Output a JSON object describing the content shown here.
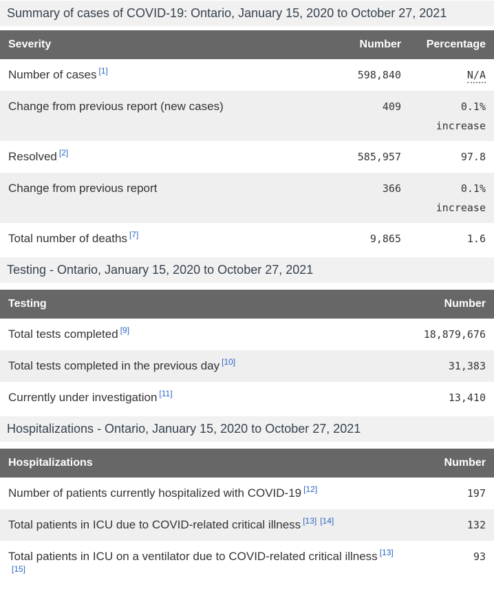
{
  "palette": {
    "table_header_bg": "#676767",
    "table_header_text": "#ffffff",
    "section_heading_bg": "#f1f1f1",
    "row_alt_bg": "#efefef",
    "body_text": "#333333",
    "footnote_link_blue": "#2966c2"
  },
  "headings": {
    "summary": "Summary of cases of COVID-19: Ontario, January 15, 2020 to October 27, 2021",
    "testing": "Testing - Ontario, January 15, 2020 to October 27, 2021",
    "hospitalizations": "Hospitalizations - Ontario, January 15, 2020 to October 27, 2021"
  },
  "summary_table": {
    "columns": [
      "Severity",
      "Number",
      "Percentage"
    ],
    "rows": [
      {
        "label": "Number of cases",
        "footnotes": [
          "[1]"
        ],
        "number": "598,840",
        "percentage": "N/A",
        "qualifier": ""
      },
      {
        "label": "Change from previous report (new cases)",
        "footnotes": [],
        "number": "409",
        "percentage": "0.1%",
        "qualifier": "increase"
      },
      {
        "label": "Resolved",
        "footnotes": [
          "[2]"
        ],
        "number": "585,957",
        "percentage": "97.8",
        "qualifier": ""
      },
      {
        "label": "Change from previous report",
        "footnotes": [],
        "number": "366",
        "percentage": "0.1%",
        "qualifier": "increase"
      },
      {
        "label": "Total number of deaths",
        "footnotes": [
          "[7]"
        ],
        "number": "9,865",
        "percentage": "1.6",
        "qualifier": ""
      }
    ]
  },
  "testing_table": {
    "columns": [
      "Testing",
      "Number"
    ],
    "rows": [
      {
        "label": "Total tests completed",
        "footnotes": [
          "[9]"
        ],
        "number": "18,879,676"
      },
      {
        "label": "Total tests completed in the previous day",
        "footnotes": [
          "[10]"
        ],
        "number": "31,383"
      },
      {
        "label": "Currently under investigation",
        "footnotes": [
          "[11]"
        ],
        "number": "13,410"
      }
    ]
  },
  "hospitalizations_table": {
    "columns": [
      "Hospitalizations",
      "Number"
    ],
    "rows": [
      {
        "label": "Number of patients currently hospitalized with COVID-19",
        "footnotes": [
          "[12]"
        ],
        "number": "197"
      },
      {
        "label": "Total patients in ICU due to COVID-related critical illness",
        "footnotes": [
          "[13]",
          "[14]"
        ],
        "number": "132"
      },
      {
        "label": "Total patients in ICU on a ventilator due to COVID-related critical illness",
        "footnotes": [
          "[13]",
          "[15]"
        ],
        "number": "93"
      }
    ]
  }
}
